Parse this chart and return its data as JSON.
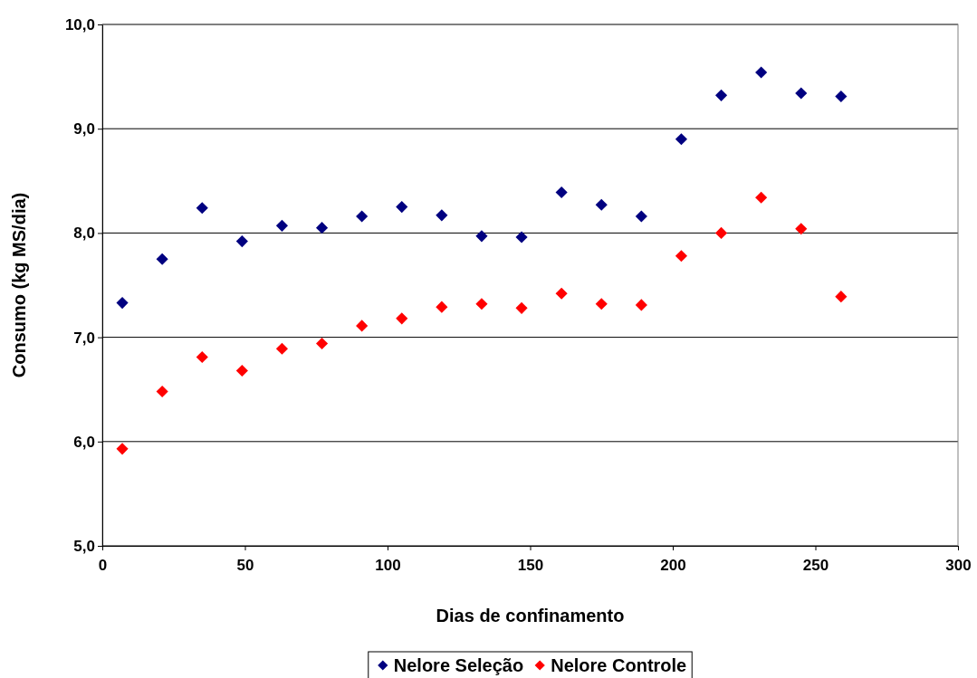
{
  "chart_data": {
    "type": "scatter",
    "xlabel": "Dias de confinamento",
    "ylabel": "Consumo (kg MS/dia)",
    "x": [
      7,
      21,
      35,
      49,
      63,
      77,
      91,
      105,
      119,
      133,
      147,
      161,
      175,
      189,
      203,
      217,
      231,
      245,
      259
    ],
    "series": [
      {
        "name": "Nelore Seleção",
        "color": "#000080",
        "values": [
          7.33,
          7.75,
          8.24,
          7.92,
          8.07,
          8.05,
          8.16,
          8.25,
          8.17,
          7.97,
          7.96,
          8.39,
          8.27,
          8.16,
          8.9,
          9.32,
          9.54,
          9.34,
          9.31
        ]
      },
      {
        "name": "Nelore Controle",
        "color": "#ff0000",
        "values": [
          5.93,
          6.48,
          6.81,
          6.68,
          6.89,
          6.94,
          7.11,
          7.18,
          7.29,
          7.32,
          7.28,
          7.42,
          7.32,
          7.31,
          7.78,
          8.0,
          8.34,
          8.04,
          7.39
        ]
      }
    ],
    "xlim": [
      0,
      300
    ],
    "xticks": [
      0,
      50,
      100,
      150,
      200,
      250,
      300
    ],
    "ylim": [
      5,
      10
    ],
    "yticks": [
      {
        "value": 5,
        "label": "5,0"
      },
      {
        "value": 6,
        "label": "6,0"
      },
      {
        "value": 7,
        "label": "7,0"
      },
      {
        "value": 8,
        "label": "8,0"
      },
      {
        "value": 9,
        "label": "9,0"
      },
      {
        "value": 10,
        "label": "10,0"
      }
    ],
    "grid": "y",
    "legend": "bottom",
    "marker": "diamond"
  }
}
